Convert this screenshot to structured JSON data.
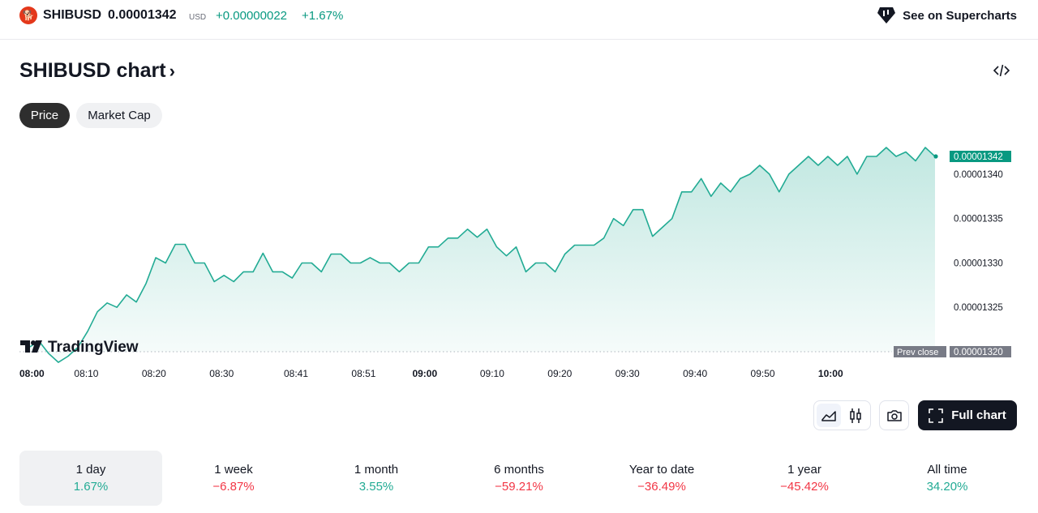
{
  "header": {
    "logo_glyph": "🐕",
    "symbol": "SHIBUSD",
    "price": "0.00001342",
    "currency": "USD",
    "change": "+0.00000022",
    "change_percent": "+1.67%",
    "supercharts_link": "See on Supercharts"
  },
  "title": {
    "text": "SHIBUSD chart",
    "chevron": "›"
  },
  "toggles": {
    "price": "Price",
    "market_cap": "Market Cap",
    "selected": "Price"
  },
  "colors": {
    "up": "#089981",
    "down": "#f23645",
    "line": "#22ab94"
  },
  "chart_data": {
    "type": "area",
    "x_labels": [
      "08:00",
      "08:10",
      "08:20",
      "08:30",
      "08:41",
      "08:51",
      "09:00",
      "09:10",
      "09:20",
      "09:30",
      "09:40",
      "09:50",
      "10:00"
    ],
    "x_labels_bold": [
      "08:00",
      "09:00",
      "10:00"
    ],
    "y_ticks": [
      "0.00001340",
      "0.00001335",
      "0.00001330",
      "0.00001325"
    ],
    "ylim": [
      1.32e-05,
      1.342e-05
    ],
    "last_price_label": "0.00001342",
    "prev_close_label": "Prev close",
    "prev_close_value": "0.00001320",
    "watermark": "TradingView",
    "values": [
      1.3205e-05,
      1.3212e-05,
      1.3198e-05,
      1.3188e-05,
      1.3195e-05,
      1.3205e-05,
      1.3223e-05,
      1.3245e-05,
      1.3255e-05,
      1.325e-05,
      1.3264e-05,
      1.3256e-05,
      1.3277e-05,
      1.3306e-05,
      1.33e-05,
      1.3321e-05,
      1.3321e-05,
      1.33e-05,
      1.33e-05,
      1.3279e-05,
      1.3286e-05,
      1.3279e-05,
      1.329e-05,
      1.329e-05,
      1.3311e-05,
      1.329e-05,
      1.329e-05,
      1.3283e-05,
      1.33e-05,
      1.33e-05,
      1.329e-05,
      1.331e-05,
      1.331e-05,
      1.33e-05,
      1.33e-05,
      1.3306e-05,
      1.33e-05,
      1.33e-05,
      1.329e-05,
      1.33e-05,
      1.33e-05,
      1.3318e-05,
      1.3318e-05,
      1.3328e-05,
      1.3328e-05,
      1.3338e-05,
      1.3329e-05,
      1.3338e-05,
      1.3318e-05,
      1.3308e-05,
      1.3318e-05,
      1.329e-05,
      1.33e-05,
      1.33e-05,
      1.329e-05,
      1.331e-05,
      1.332e-05,
      1.332e-05,
      1.332e-05,
      1.3328e-05,
      1.335e-05,
      1.3342e-05,
      1.336e-05,
      1.336e-05,
      1.333e-05,
      1.334e-05,
      1.335e-05,
      1.338e-05,
      1.338e-05,
      1.3395e-05,
      1.3375e-05,
      1.339e-05,
      1.338e-05,
      1.3395e-05,
      1.34e-05,
      1.341e-05,
      1.34e-05,
      1.338e-05,
      1.34e-05,
      1.341e-05,
      1.342e-05,
      1.341e-05,
      1.342e-05,
      1.341e-05,
      1.342e-05,
      1.34e-05,
      1.342e-05,
      1.342e-05,
      1.343e-05,
      1.342e-05,
      1.3425e-05,
      1.3415e-05,
      1.343e-05,
      1.342e-05
    ]
  },
  "tools": {
    "area_icon": "area-chart-icon",
    "candle_icon": "candlestick-icon",
    "snapshot_icon": "camera-icon",
    "full_chart_label": "Full chart"
  },
  "periods": [
    {
      "label": "1 day",
      "value": "1.67%",
      "dir": "up"
    },
    {
      "label": "1 week",
      "value": "−6.87%",
      "dir": "down"
    },
    {
      "label": "1 month",
      "value": "3.55%",
      "dir": "up"
    },
    {
      "label": "6 months",
      "value": "−59.21%",
      "dir": "down"
    },
    {
      "label": "Year to date",
      "value": "−36.49%",
      "dir": "down"
    },
    {
      "label": "1 year",
      "value": "−45.42%",
      "dir": "down"
    },
    {
      "label": "All time",
      "value": "34.20%",
      "dir": "up"
    }
  ],
  "selected_period": "1 day"
}
